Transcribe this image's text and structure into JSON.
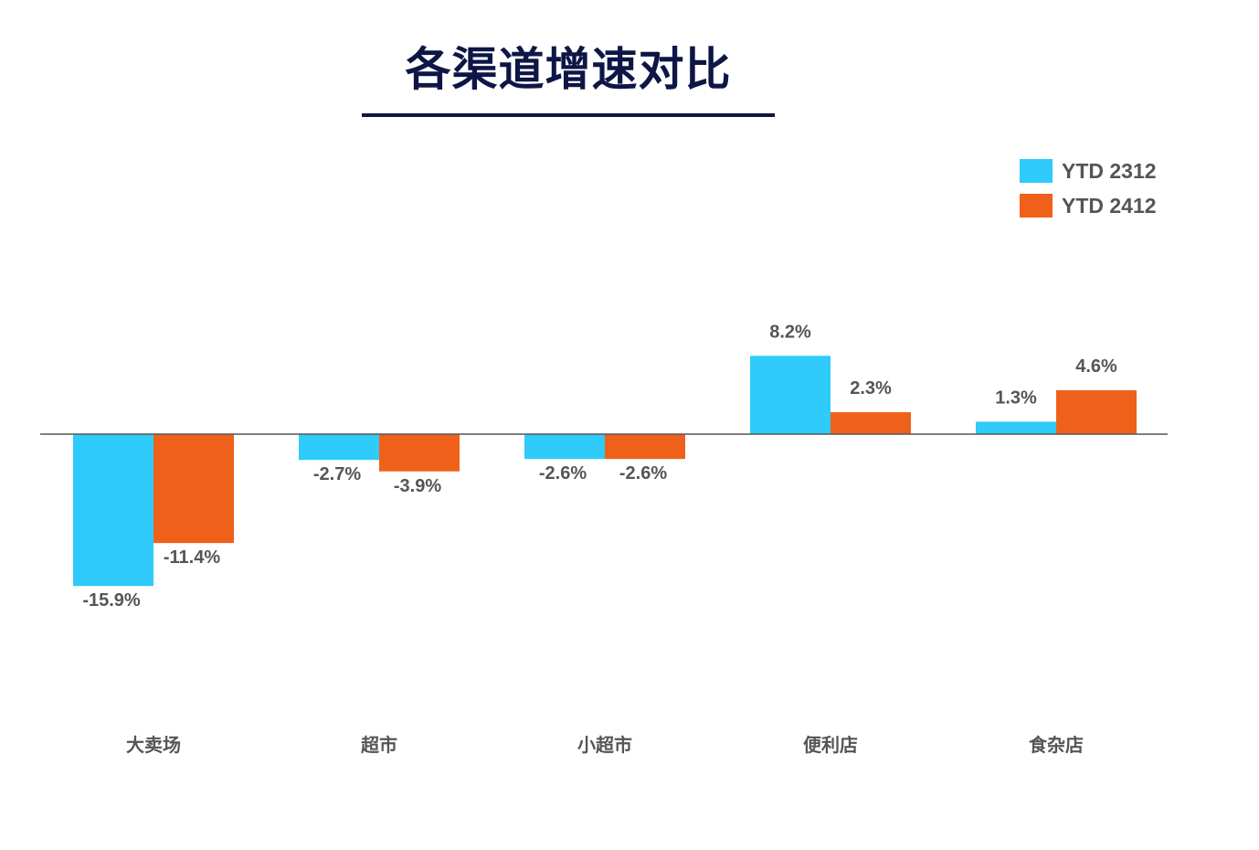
{
  "chart_data": {
    "type": "bar",
    "title": "各渠道增速对比",
    "categories": [
      "大卖场",
      "超市",
      "小超市",
      "便利店",
      "食杂店"
    ],
    "series": [
      {
        "name": "YTD 2312",
        "color": "#2ecbfb",
        "values": [
          -15.9,
          -2.7,
          -2.6,
          8.2,
          1.3
        ],
        "labels": [
          "-15.9%",
          "-2.7%",
          "-2.6%",
          "8.2%",
          "1.3%"
        ]
      },
      {
        "name": "YTD 2412",
        "color": "#ef611b",
        "values": [
          -11.4,
          -3.9,
          -2.6,
          2.3,
          4.6
        ],
        "labels": [
          "-11.4%",
          "-3.9%",
          "-2.6%",
          "2.3%",
          "4.6%"
        ]
      }
    ],
    "xlabel": "",
    "ylabel": "",
    "ylim": [
      -20,
      10
    ],
    "grid": false,
    "legend": "top-right"
  }
}
